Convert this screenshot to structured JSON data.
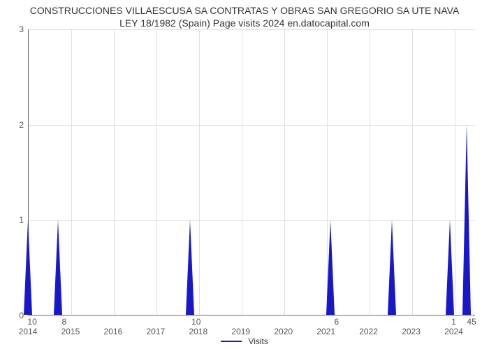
{
  "chart": {
    "type": "line-spikes",
    "title": "CONSTRUCCIONES VILLAESCUSA SA CONTRATAS Y OBRAS SAN GREGORIO SA UTE NAVA LEY 18/1982 (Spain) Page visits 2024 en.datocapital.com",
    "title_fontsize": 14,
    "background_color": "#ffffff",
    "grid_color": "#e0e0e0",
    "axis_color": "#696969",
    "line_color": "#1818c8",
    "line_width": 2,
    "y": {
      "ticks": [
        0,
        1,
        2,
        3
      ],
      "labels": [
        "0",
        "1",
        "2",
        "3"
      ],
      "min": 0,
      "max": 3
    },
    "x": {
      "min": 2014.0,
      "max": 2024.5,
      "lower_ticks": [
        2014,
        2015,
        2016,
        2017,
        2018,
        2019,
        2020,
        2021,
        2022,
        2023,
        2024
      ],
      "lower_labels": [
        "2014",
        "2015",
        "2016",
        "2017",
        "2018",
        "2019",
        "2020",
        "2021",
        "2022",
        "2023",
        "2024"
      ]
    },
    "spikes": [
      {
        "x_year": 2014.0,
        "value": 1,
        "label": "10",
        "label_dx": 0.1
      },
      {
        "x_year": 2014.7,
        "value": 1,
        "label": "8",
        "label_dx": 0.15
      },
      {
        "x_year": 2017.8,
        "value": 1,
        "label": "10",
        "label_dx": 0.15
      },
      {
        "x_year": 2021.1,
        "value": 1,
        "label": "6",
        "label_dx": 0.15
      },
      {
        "x_year": 2022.55,
        "value": 1,
        "label": "",
        "label_dx": 0
      },
      {
        "x_year": 2023.9,
        "value": 1,
        "label": "1",
        "label_dx": 0.1
      },
      {
        "x_year": 2024.3,
        "value": 2,
        "label": "45",
        "label_dx": 0.12
      }
    ],
    "spike_half_width_years": 0.11,
    "legend": {
      "label": "Visits",
      "color": "#1818c8"
    }
  }
}
